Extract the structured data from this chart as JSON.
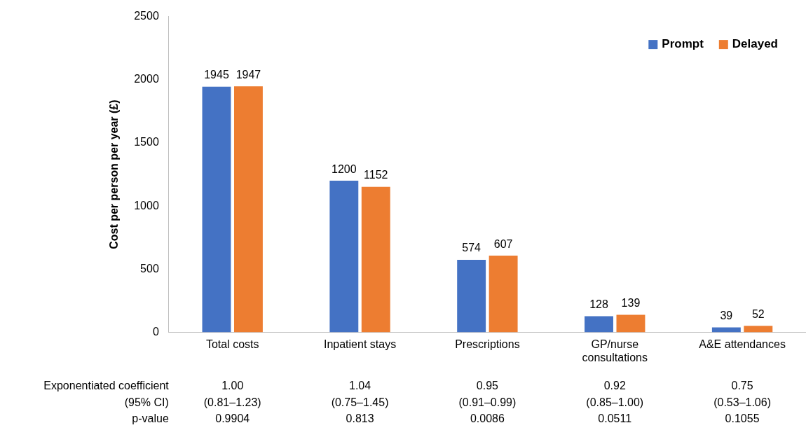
{
  "chart_data": {
    "type": "bar",
    "ylabel": "Cost per person per year (£)",
    "categories": [
      "Total costs",
      "Inpatient stays",
      "Prescriptions",
      "GP/nurse consultations",
      "A&E attendances"
    ],
    "series": [
      {
        "name": "Prompt",
        "color": "#4472c4",
        "values": [
          1945,
          1200,
          574,
          128,
          39
        ]
      },
      {
        "name": "Delayed",
        "color": "#ed7d31",
        "values": [
          1947,
          1152,
          607,
          139,
          52
        ]
      }
    ],
    "ylim": [
      0,
      2500
    ],
    "yticks": [
      0,
      500,
      1000,
      1500,
      2000,
      2500
    ],
    "grid": false,
    "legend": "top right",
    "data_labels": true,
    "annotations": [
      "Exponentiated coefficient",
      "(95% CI)",
      "p-value",
      "1.00",
      "(0.81–1.23)",
      "0.9904",
      "1.04",
      "(0.75–1.45)",
      "0.813",
      "0.95",
      "(0.91–0.99)",
      "0.0086",
      "0.92",
      "(0.85–1.00)",
      "0.0511",
      "0.75",
      "(0.53–1.06)",
      "0.1055"
    ]
  }
}
